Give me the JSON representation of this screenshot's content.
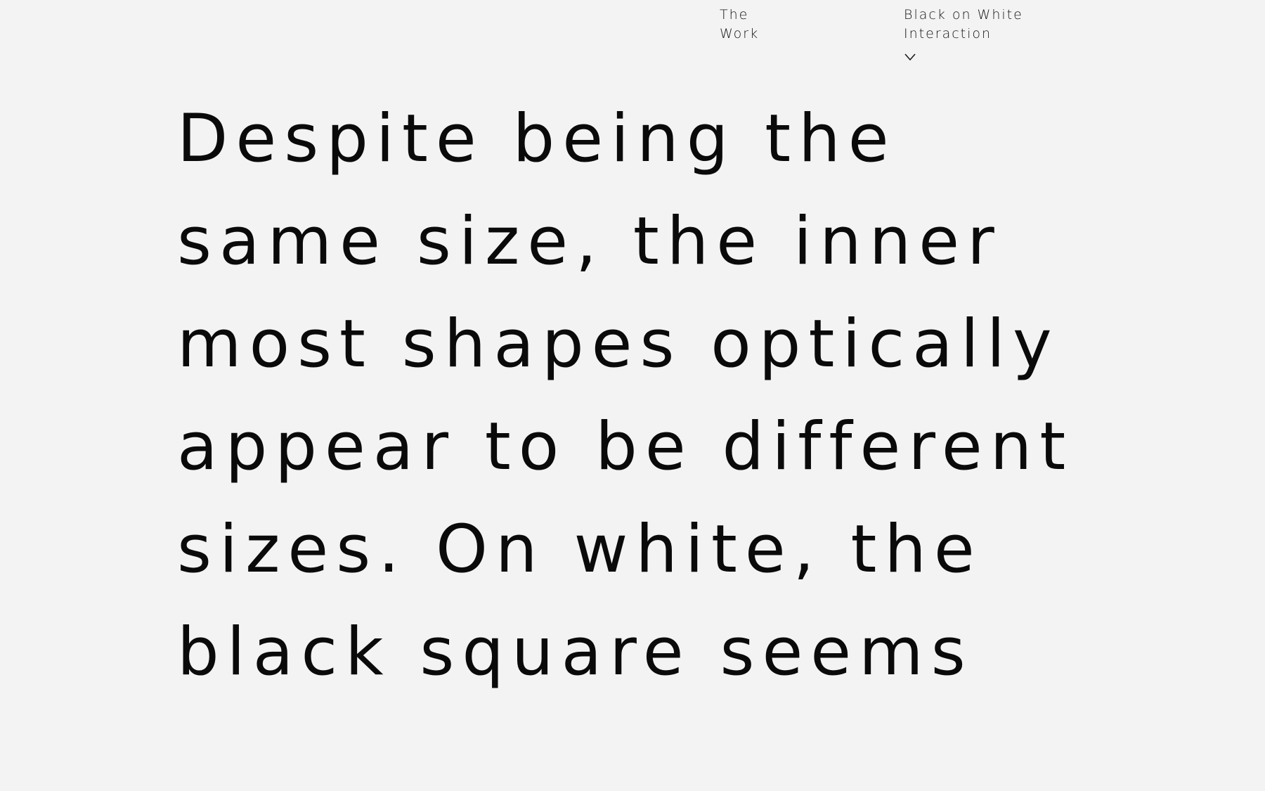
{
  "nav": {
    "work": [
      "The",
      "Work"
    ],
    "project": [
      "Black on White",
      "Interaction"
    ],
    "toggle_icon": "chevron-down-icon"
  },
  "body_text": {
    "lines": [
      "Despite being the",
      "same size, the inner",
      "most shapes optically",
      "appear to be different",
      "sizes. On white, the",
      "black square seems"
    ]
  }
}
